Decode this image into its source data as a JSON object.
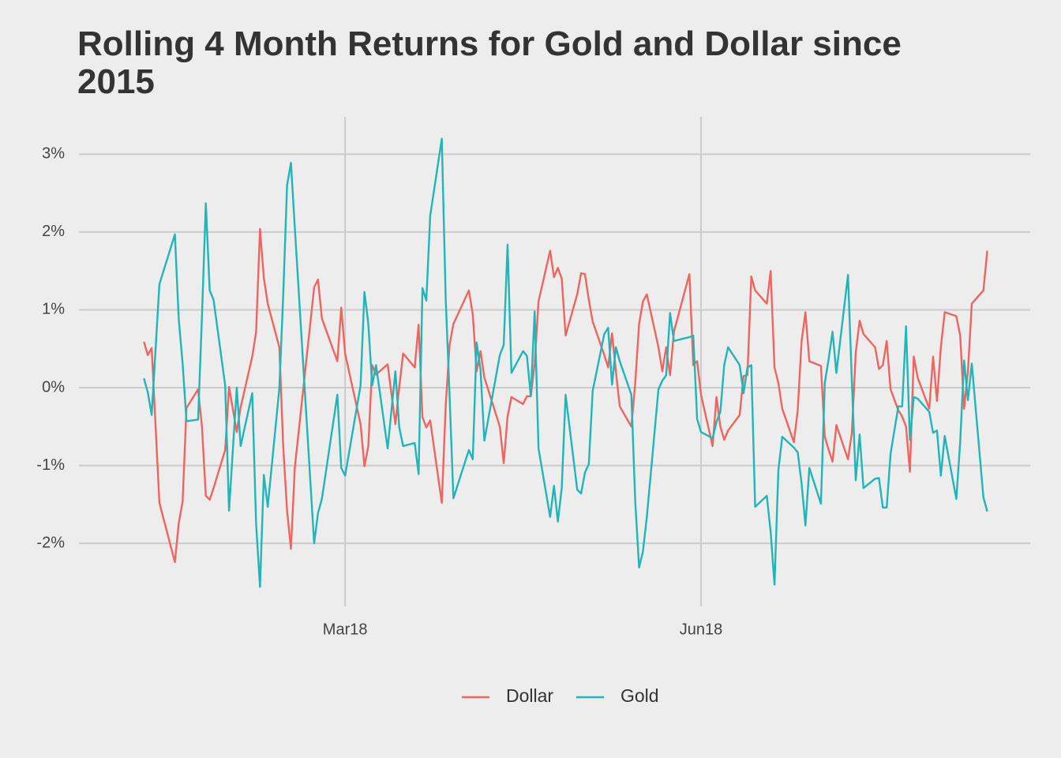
{
  "chart_data": {
    "type": "line",
    "title": "Rolling 4 Month Returns for Gold and Dollar since 2015",
    "x": [
      7,
      8,
      9,
      11,
      15,
      16,
      17,
      18,
      21,
      22,
      23,
      24,
      25,
      28,
      29,
      31,
      32,
      35,
      36,
      37,
      38,
      39,
      42,
      43,
      44,
      45,
      46,
      51,
      52,
      53,
      57,
      58,
      59,
      63,
      64,
      65,
      66,
      67,
      70,
      72,
      73,
      74,
      77,
      78,
      79,
      80,
      81,
      84,
      85,
      86,
      87,
      91,
      92,
      93,
      94,
      95,
      99,
      100,
      101,
      102,
      105,
      106,
      107,
      108,
      109,
      112,
      113,
      114,
      115,
      116,
      119,
      120,
      121,
      122,
      123,
      126,
      127,
      128,
      129,
      130,
      133,
      134,
      135,
      136,
      137,
      140,
      141,
      142,
      143,
      144,
      148,
      149,
      150,
      151,
      154,
      155,
      156,
      157,
      158,
      161,
      162,
      163,
      164,
      165,
      168,
      169,
      170,
      171,
      172,
      175,
      176,
      177,
      178,
      179,
      182,
      183,
      184,
      185,
      186,
      189,
      190,
      191,
      192,
      193,
      196,
      197,
      198,
      199,
      200,
      202,
      203,
      204,
      205,
      206,
      207,
      210,
      211,
      212,
      213,
      214,
      217,
      218,
      219,
      220,
      221,
      224,
      225
    ],
    "series": [
      {
        "name": "Dollar",
        "color": "#f0645f",
        "values": [
          0.59,
          0.42,
          0.51,
          -1.48,
          -2.24,
          -1.74,
          -1.46,
          -0.26,
          -0.02,
          -0.5,
          -1.39,
          -1.44,
          -1.29,
          -0.8,
          0.01,
          -0.57,
          -0.25,
          0.4,
          0.72,
          2.04,
          1.41,
          1.08,
          0.52,
          -0.75,
          -1.58,
          -2.07,
          -1.03,
          1.29,
          1.39,
          0.89,
          0.34,
          1.03,
          0.44,
          -0.47,
          -1.01,
          -0.75,
          0.29,
          0.17,
          0.3,
          -0.47,
          0.01,
          0.44,
          0.26,
          0.81,
          -0.38,
          -0.51,
          -0.42,
          -1.48,
          -0.24,
          0.55,
          0.82,
          1.25,
          0.94,
          0.21,
          0.47,
          0.13,
          -0.5,
          -0.97,
          -0.37,
          -0.12,
          -0.21,
          -0.11,
          -0.11,
          0.31,
          1.11,
          1.76,
          1.42,
          1.54,
          1.4,
          0.67,
          1.2,
          1.47,
          1.46,
          1.13,
          0.85,
          0.42,
          0.26,
          0.7,
          0.21,
          -0.24,
          -0.5,
          0.06,
          0.82,
          1.11,
          1.2,
          0.52,
          0.21,
          0.52,
          0.16,
          0.72,
          1.46,
          0.29,
          0.34,
          -0.09,
          -0.75,
          -0.12,
          -0.5,
          -0.67,
          -0.55,
          -0.35,
          0.15,
          0.16,
          1.43,
          1.25,
          1.08,
          1.5,
          0.26,
          0.06,
          -0.27,
          -0.7,
          -0.29,
          0.6,
          0.97,
          0.34,
          0.28,
          -0.63,
          -0.8,
          -0.95,
          -0.48,
          -0.92,
          -0.58,
          0.45,
          0.86,
          0.69,
          0.52,
          0.24,
          0.29,
          0.6,
          -0.02,
          -0.29,
          -0.37,
          -0.5,
          -1.08,
          0.4,
          0.13,
          -0.27,
          0.4,
          -0.17,
          0.52,
          0.97,
          0.92,
          0.67,
          -0.27,
          0.21,
          1.08,
          1.25,
          1.76
        ]
      },
      {
        "name": "Gold",
        "color": "#1fb5b9",
        "values": [
          0.12,
          -0.06,
          -0.35,
          1.33,
          1.97,
          0.88,
          0.31,
          -0.43,
          -0.41,
          0.92,
          2.37,
          1.25,
          1.13,
          0.03,
          -1.58,
          0,
          -0.75,
          -0.07,
          -1.75,
          -2.56,
          -1.12,
          -1.53,
          -0.01,
          1.18,
          2.6,
          2.89,
          2.06,
          -2.0,
          -1.61,
          -1.43,
          -0.09,
          -1.03,
          -1.13,
          0.03,
          1.23,
          0.82,
          0.03,
          0.29,
          -0.78,
          0.21,
          -0.51,
          -0.75,
          -0.71,
          -1.11,
          1.28,
          1.12,
          2.21,
          3.2,
          1.15,
          -0.09,
          -1.42,
          -0.8,
          -0.92,
          0.58,
          0.23,
          -0.68,
          0.42,
          0.55,
          1.84,
          0.19,
          0.47,
          0.41,
          -0.11,
          0.98,
          -0.78,
          -1.66,
          -1.26,
          -1.72,
          -1.29,
          -0.09,
          -1.31,
          -1.36,
          -1.09,
          -0.98,
          -0.04,
          0.69,
          0.77,
          0.04,
          0.52,
          0.34,
          -0.09,
          -1.46,
          -2.31,
          -2.1,
          -1.66,
          -0.02,
          0.09,
          0.16,
          0.96,
          0.6,
          0.65,
          0.67,
          -0.4,
          -0.57,
          -0.65,
          -0.44,
          -0.31,
          0.29,
          0.52,
          0.29,
          -0.07,
          0.26,
          0.29,
          -1.53,
          -1.39,
          -1.85,
          -2.53,
          -1.06,
          -0.63,
          -0.77,
          -0.83,
          -1.23,
          -1.77,
          -1.03,
          -1.49,
          0.06,
          0.37,
          0.72,
          0.19,
          1.45,
          0.08,
          -1.19,
          -0.6,
          -1.29,
          -1.17,
          -1.16,
          -1.54,
          -1.54,
          -0.85,
          -0.24,
          -0.24,
          0.79,
          -0.67,
          -0.12,
          -0.14,
          -0.31,
          -0.58,
          -0.55,
          -1.13,
          -0.62,
          -1.43,
          -0.7,
          0.35,
          -0.16,
          0.31,
          -1.41,
          -1.59
        ]
      }
    ],
    "xlim": [
      -9.8,
      236.1
    ],
    "xticks": [
      {
        "value": 59,
        "label": "Mar18"
      },
      {
        "value": 151,
        "label": "Jun18"
      }
    ],
    "ylim": [
      -2.81,
      3.48
    ],
    "yticks": [
      {
        "value": -2,
        "label": "-2%"
      },
      {
        "value": -1,
        "label": "-1%"
      },
      {
        "value": 0,
        "label": "0%"
      },
      {
        "value": 1,
        "label": "1%"
      },
      {
        "value": 2,
        "label": "2%"
      },
      {
        "value": 3,
        "label": "3%"
      }
    ],
    "grid": true,
    "legend": "bottom"
  }
}
